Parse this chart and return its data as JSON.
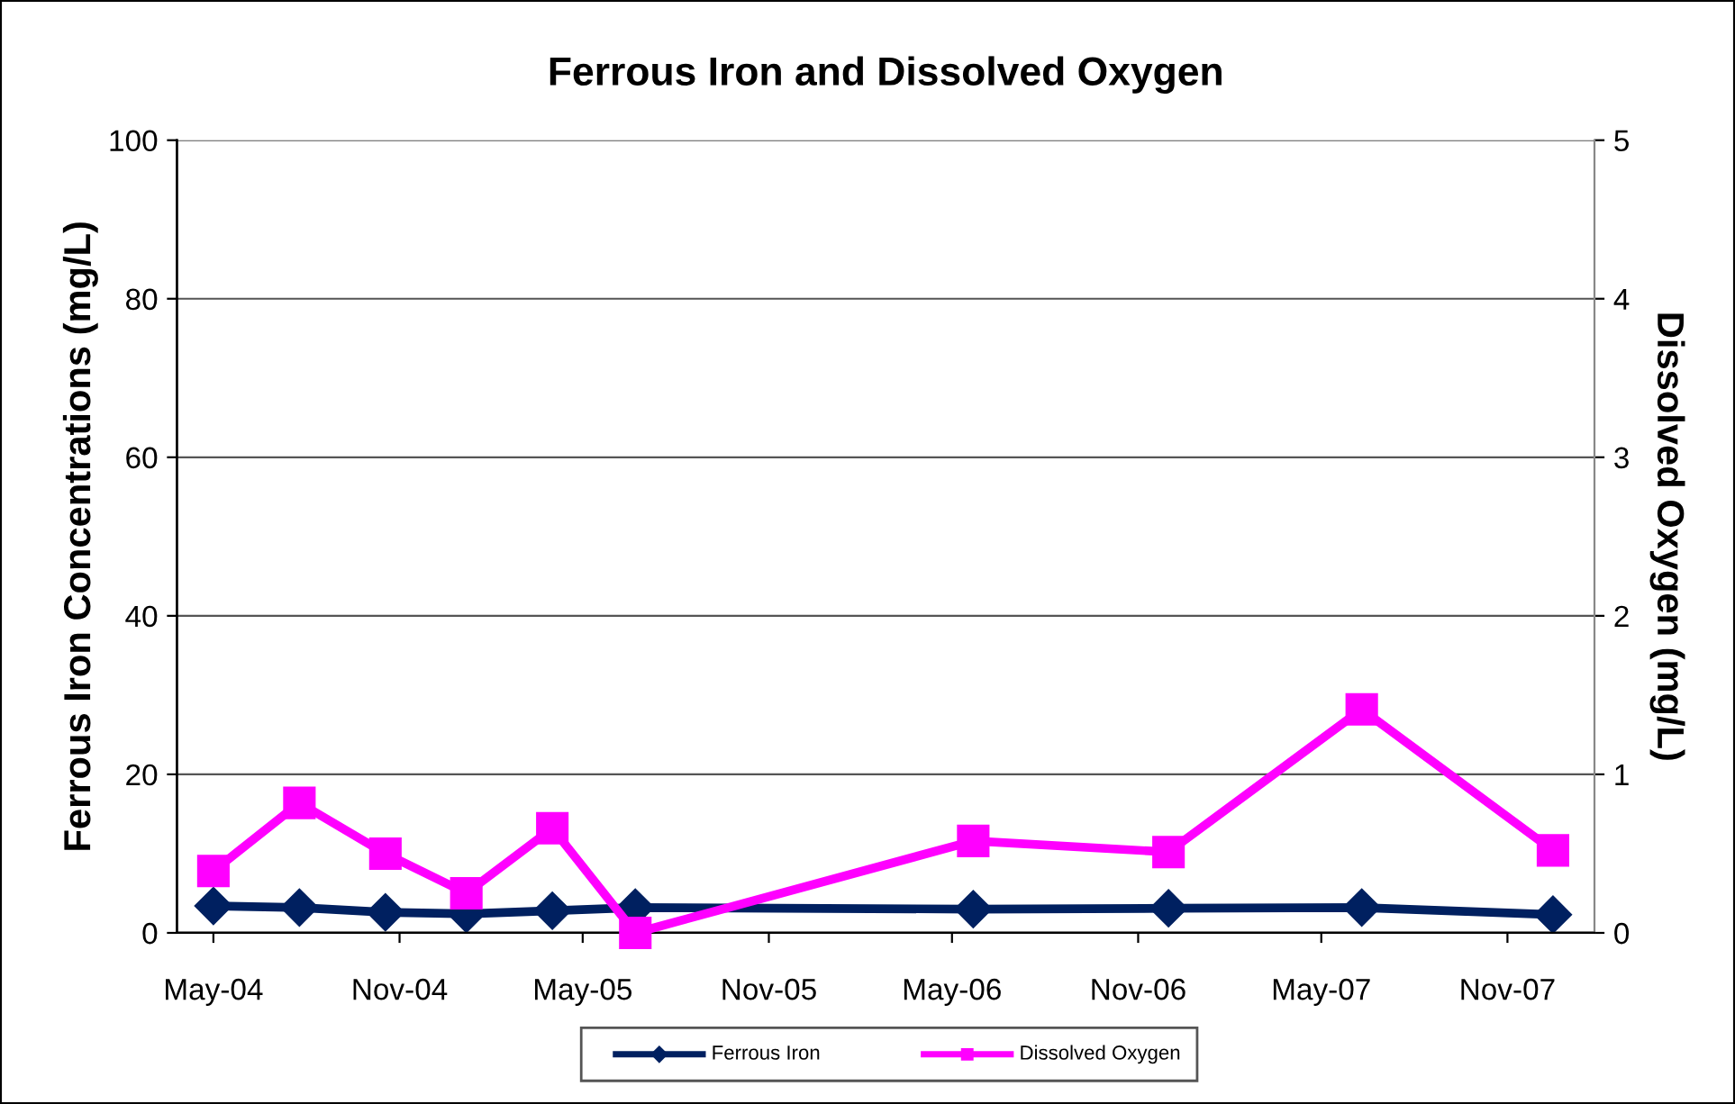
{
  "chart_data": {
    "type": "line",
    "title": "Ferrous Iron and Dissolved Oxygen",
    "ylabel": "Ferrous Iron Concentrations (mg/L)",
    "y2label": "Dissolved Oxygen (mg/L)",
    "x": [
      "2004-05-01",
      "2004-07-25",
      "2004-10-18",
      "2005-01-06",
      "2005-04-01",
      "2005-06-22",
      "2006-05-22",
      "2006-12-01",
      "2007-06-10",
      "2007-12-16"
    ],
    "series": [
      {
        "name": "Ferrous Iron",
        "color": "#002060",
        "marker": "diamond",
        "values": [
          3.4,
          3.2,
          2.6,
          2.4,
          2.8,
          3.2,
          3.0,
          3.1,
          3.2,
          2.3
        ]
      },
      {
        "name": "Dissolved Oxygen",
        "color": "#ff00ff",
        "marker": "square",
        "axis": "y2",
        "values": [
          0.39,
          0.82,
          0.5,
          0.25,
          0.66,
          0.0,
          0.58,
          0.51,
          1.41,
          0.52
        ]
      }
    ],
    "xlim": [
      "2004-03-26",
      "2008-01-26"
    ],
    "xticks": [
      {
        "value": "2004-05-01",
        "label": "May-04"
      },
      {
        "value": "2004-11-01",
        "label": "Nov-04"
      },
      {
        "value": "2005-05-01",
        "label": "May-05"
      },
      {
        "value": "2005-11-01",
        "label": "Nov-05"
      },
      {
        "value": "2006-05-01",
        "label": "May-06"
      },
      {
        "value": "2006-11-01",
        "label": "Nov-06"
      },
      {
        "value": "2007-05-01",
        "label": "May-07"
      },
      {
        "value": "2007-11-01",
        "label": "Nov-07"
      }
    ],
    "ylim": [
      0,
      100
    ],
    "yticks": [
      0,
      20,
      40,
      60,
      80,
      100
    ],
    "y2lim": [
      0,
      5
    ],
    "y2ticks": [
      0,
      1,
      2,
      3,
      4,
      5
    ],
    "grid": "y",
    "legend": "bottom",
    "line_style": "solid"
  }
}
